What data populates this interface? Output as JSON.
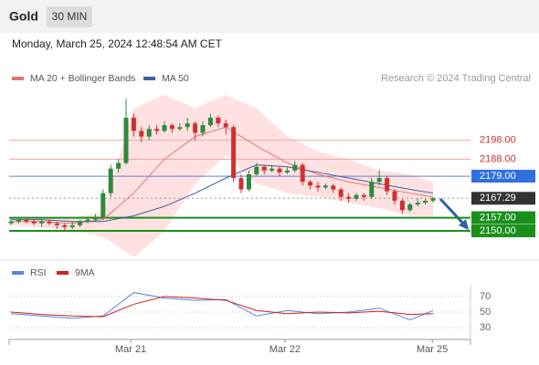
{
  "header": {
    "title": "Gold",
    "timeframe": "30 MIN",
    "date": "Monday, March 25, 2024 12:48:54 AM CET"
  },
  "chart_data": [
    {
      "type": "candlestick",
      "source": "Research © 2024 Trading Central",
      "ylim": [
        2136,
        2224
      ],
      "up_color": "#2e8b3a",
      "down_color": "#d03030",
      "open": [
        2154,
        2155,
        2156,
        2155,
        2154,
        2155,
        2154,
        2153,
        2152,
        2153,
        2155,
        2156,
        2157,
        2170,
        2183,
        2186,
        2210,
        2203,
        2200,
        2204,
        2203,
        2206,
        2204,
        2205,
        2207,
        2202,
        2206,
        2210,
        2207,
        2205,
        2178,
        2172,
        2180,
        2184,
        2182,
        2183,
        2181,
        2182,
        2185,
        2176,
        2174,
        2173,
        2174,
        2172,
        2168,
        2167,
        2169,
        2168,
        2176,
        2178,
        2171,
        2166,
        2161,
        2164,
        2165,
        2166
      ],
      "high": [
        2157,
        2157,
        2157,
        2156,
        2156,
        2156,
        2155,
        2154,
        2155,
        2156,
        2157,
        2159,
        2172,
        2185,
        2188,
        2220,
        2212,
        2205,
        2206,
        2206,
        2208,
        2207,
        2207,
        2210,
        2208,
        2208,
        2212,
        2211,
        2209,
        2206,
        2180,
        2182,
        2186,
        2185,
        2185,
        2184,
        2184,
        2187,
        2186,
        2177,
        2176,
        2175,
        2175,
        2173,
        2170,
        2170,
        2170,
        2178,
        2182,
        2179,
        2172,
        2167,
        2165,
        2167,
        2167,
        2168
      ],
      "low": [
        2153,
        2154,
        2154,
        2153,
        2152,
        2153,
        2151,
        2150,
        2151,
        2152,
        2154,
        2155,
        2156,
        2168,
        2181,
        2185,
        2200,
        2197,
        2198,
        2201,
        2202,
        2202,
        2203,
        2203,
        2198,
        2200,
        2205,
        2205,
        2201,
        2176,
        2170,
        2171,
        2179,
        2180,
        2181,
        2179,
        2180,
        2181,
        2174,
        2172,
        2171,
        2172,
        2170,
        2166,
        2165,
        2166,
        2166,
        2167,
        2174,
        2169,
        2164,
        2159,
        2160,
        2163,
        2164,
        2165
      ],
      "close": [
        2155,
        2156,
        2155,
        2154,
        2155,
        2154,
        2153,
        2152,
        2153,
        2155,
        2156,
        2157,
        2170,
        2183,
        2186,
        2210,
        2203,
        2200,
        2204,
        2203,
        2206,
        2204,
        2205,
        2207,
        2202,
        2206,
        2210,
        2207,
        2205,
        2178,
        2172,
        2180,
        2184,
        2182,
        2183,
        2181,
        2182,
        2185,
        2176,
        2174,
        2173,
        2174,
        2172,
        2168,
        2167,
        2169,
        2168,
        2176,
        2178,
        2171,
        2166,
        2161,
        2164,
        2165,
        2166,
        2167.29
      ],
      "overlay_x": [
        0,
        4,
        8,
        12,
        16,
        20,
        24,
        28,
        32,
        36,
        40,
        44,
        48,
        52,
        55
      ],
      "series": [
        {
          "name": "MA 20 + Bollinger Bands",
          "color": "#e57373",
          "values": [
            2155,
            2155,
            2154,
            2156,
            2170,
            2188,
            2200,
            2205,
            2195,
            2186,
            2180,
            2176,
            2173,
            2170,
            2168
          ]
        },
        {
          "name": "MA 50",
          "color": "#3f5f9f",
          "values": [
            2156,
            2156,
            2155,
            2155,
            2158,
            2163,
            2170,
            2178,
            2185,
            2184,
            2181,
            2178,
            2175,
            2172,
            2170
          ]
        }
      ],
      "bands": {
        "color": "#ffd9d9",
        "upper": [
          2156,
          2157,
          2157,
          2160,
          2215,
          2222,
          2215,
          2222,
          2215,
          2200,
          2192,
          2188,
          2182,
          2180,
          2176
        ],
        "lower": [
          2153,
          2152,
          2150,
          2147,
          2136,
          2150,
          2175,
          2190,
          2175,
          2170,
          2168,
          2165,
          2162,
          2158,
          2158
        ]
      },
      "levels": {
        "values": [
          2198,
          2188,
          2179,
          2167.29,
          2157,
          2150
        ],
        "value_labels": [
          "2198.00",
          "2188.00",
          "2179.00",
          "2167.29",
          "2157.00",
          "2150.00"
        ],
        "colors": [
          "#f4a3a3",
          "#f4a3a3",
          "#5b84d9",
          "#999999",
          "#1a8f1a",
          "#1a8f1a"
        ],
        "text_colors": [
          "#d03030",
          "#d03030",
          "#ffffff",
          "#ffffff",
          "#ffffff",
          "#ffffff"
        ],
        "box_colors": [
          null,
          null,
          "#2f6fe0",
          "#333333",
          "#1a8f1a",
          "#1a8f1a"
        ]
      }
    },
    {
      "type": "line",
      "ylim": [
        15,
        85
      ],
      "yticks": [
        30,
        50,
        70
      ],
      "x": [
        0,
        4,
        8,
        12,
        16,
        20,
        24,
        28,
        32,
        36,
        40,
        44,
        48,
        52,
        55
      ],
      "series": [
        {
          "name": "RSI",
          "color": "#5b84d9",
          "values": [
            48,
            45,
            42,
            45,
            75,
            68,
            65,
            66,
            45,
            52,
            48,
            50,
            55,
            40,
            52
          ]
        },
        {
          "name": "9MA",
          "color": "#d02020",
          "values": [
            50,
            47,
            45,
            44,
            60,
            70,
            68,
            65,
            52,
            48,
            50,
            49,
            51,
            47,
            48
          ]
        }
      ],
      "xticks": [
        {
          "value": 15.6,
          "label": "Mar 21"
        },
        {
          "value": 35.7,
          "label": "Mar 22"
        },
        {
          "value": 54.9,
          "label": "Mar 25"
        }
      ]
    }
  ]
}
